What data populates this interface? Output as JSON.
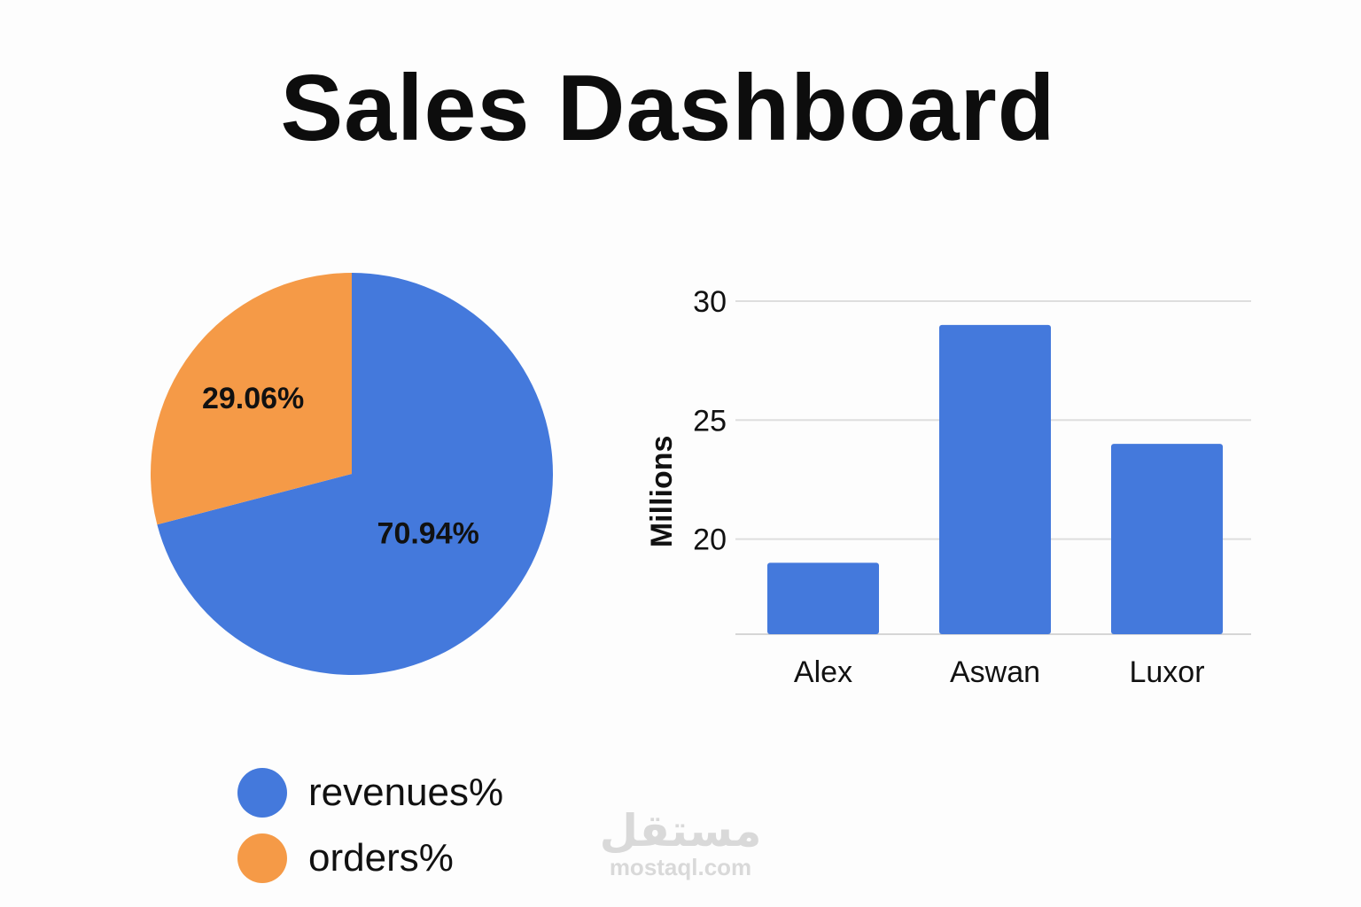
{
  "page": {
    "title": "Sales Dashboard"
  },
  "chart_data": [
    {
      "type": "pie",
      "slices": [
        {
          "name": "revenues%",
          "value": 70.94,
          "label": "70.94%",
          "color": "#4479dc"
        },
        {
          "name": "orders%",
          "value": 29.06,
          "label": "29.06%",
          "color": "#f59a47"
        }
      ],
      "legend": {
        "position": "bottom",
        "items": [
          {
            "label": "revenues%",
            "color": "#4479dc"
          },
          {
            "label": "orders%",
            "color": "#f59a47"
          }
        ]
      }
    },
    {
      "type": "bar",
      "categories": [
        "Alex",
        "Aswan",
        "Luxor"
      ],
      "values": [
        19,
        29,
        24
      ],
      "ylabel": "Millions",
      "ylim": [
        16,
        30
      ],
      "yticks": [
        20,
        25,
        30
      ],
      "grid": true,
      "color": "#4479dc"
    }
  ],
  "watermark": {
    "logo": "مستقل",
    "url": "mostaql.com"
  }
}
